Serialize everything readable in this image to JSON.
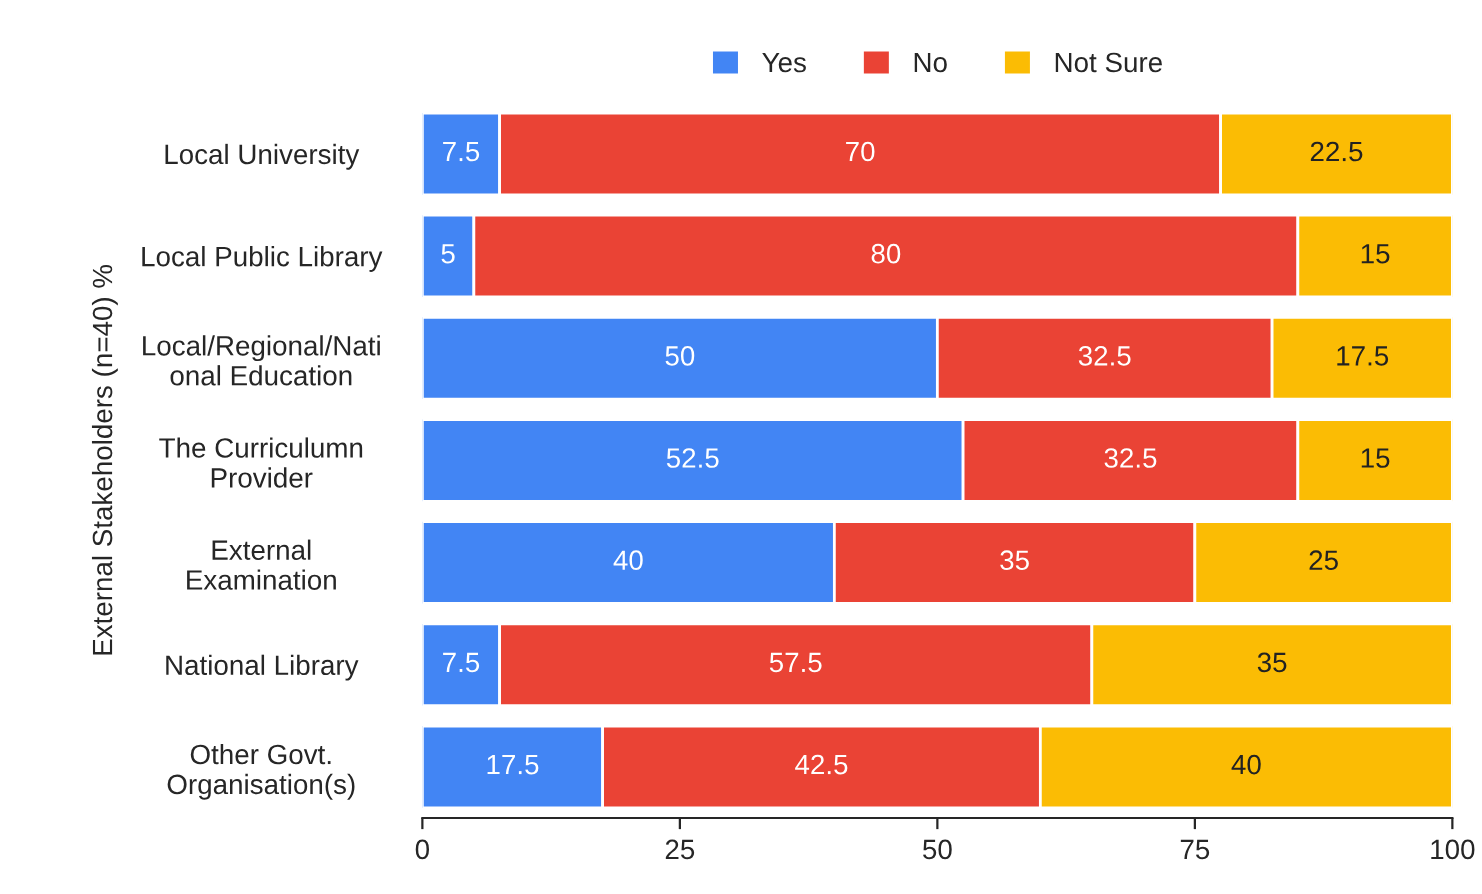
{
  "chart_data": {
    "type": "bar",
    "orientation": "horizontal",
    "stacked": true,
    "ylabel": "External Stakeholders (n=40) %",
    "categories": [
      "Local University",
      "Local Public Library",
      "Local/Regional/Nati\nonal Education",
      "The Curriculumn\nProvider",
      "External\nExamination",
      "National Library",
      "Other Govt.\nOrganisation(s)"
    ],
    "series": [
      {
        "name": "Yes",
        "color": "#4285f4",
        "values": [
          7.5,
          5,
          50,
          52.5,
          40,
          7.5,
          17.5
        ]
      },
      {
        "name": "No",
        "color": "#ea4335",
        "values": [
          70,
          80,
          32.5,
          32.5,
          35,
          57.5,
          42.5
        ]
      },
      {
        "name": "Not Sure",
        "color": "#fbbc04",
        "values": [
          22.5,
          15,
          17.5,
          15,
          25,
          35,
          40
        ]
      }
    ],
    "xlim": [
      0,
      100
    ],
    "xticks": [
      0,
      25,
      50,
      75,
      100
    ],
    "data_labels": true,
    "legend": "top",
    "grid": false
  }
}
